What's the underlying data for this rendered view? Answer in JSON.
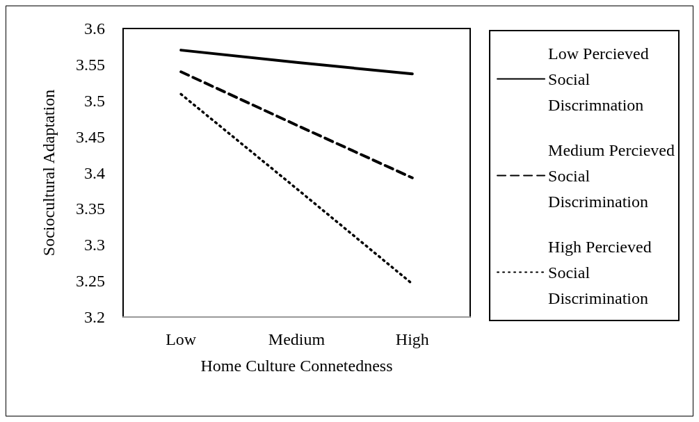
{
  "chart_data": {
    "type": "line",
    "xlabel": "Home Culture Connetedness",
    "ylabel": "Sociocultural Adaptation",
    "categories": [
      "Low",
      "Medium",
      "High"
    ],
    "series": [
      {
        "name": "Low Percieved Social Discrimnation",
        "color": "#000000",
        "line_style": "solid",
        "values": [
          3.57,
          3.553,
          3.537
        ]
      },
      {
        "name": "Medium Percieved Social Discrimination",
        "color": "#000000",
        "line_style": "dashed",
        "values": [
          3.54,
          3.466,
          3.393
        ]
      },
      {
        "name": "High Percieved Social Discrimination",
        "color": "#000000",
        "line_style": "dotted",
        "values": [
          3.509,
          3.378,
          3.246
        ]
      }
    ],
    "ylim": [
      3.2,
      3.6
    ],
    "yticks": [
      3.2,
      3.25,
      3.3,
      3.35,
      3.4,
      3.45,
      3.5,
      3.55,
      3.6
    ],
    "grid": false,
    "legend": "right",
    "marker": "none"
  }
}
